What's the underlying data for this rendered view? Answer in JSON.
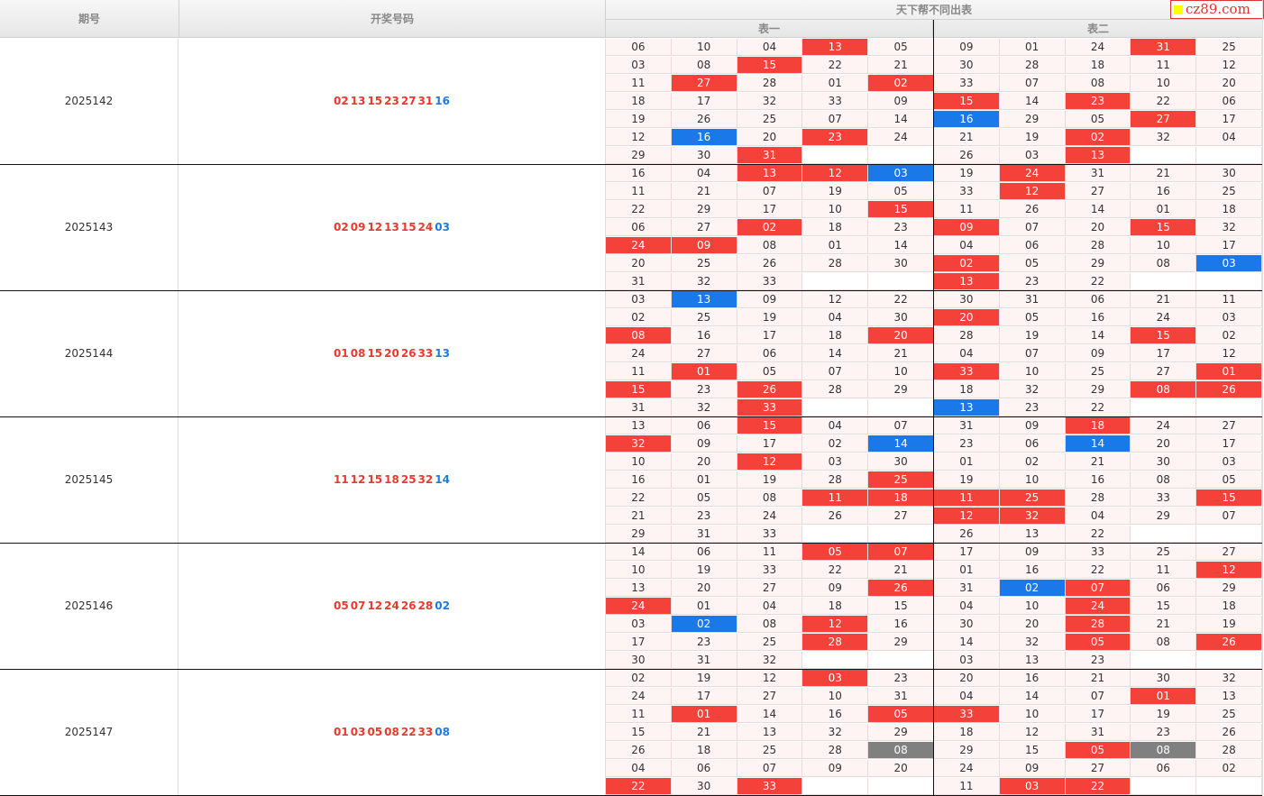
{
  "header": {
    "issue_label": "期号",
    "draw_label": "开奖号码",
    "main_title": "天下帮不同出表",
    "table1_label": "表一",
    "table2_label": "表二",
    "logo_text": "cz89.com"
  },
  "colors": {
    "red": "#f4413a",
    "blue": "#1b78e8",
    "gray": "#808080",
    "cell_bg": "#fff4f4"
  },
  "groups": [
    {
      "issue": "2025142",
      "red_numbers": [
        "02",
        "13",
        "15",
        "23",
        "27",
        "31"
      ],
      "blue_number": "16",
      "table1": [
        [
          "06",
          "10",
          "04",
          "13r",
          "05"
        ],
        [
          "03",
          "08",
          "15r",
          "22",
          "21"
        ],
        [
          "11",
          "27r",
          "28",
          "01",
          "02r"
        ],
        [
          "18",
          "17",
          "32",
          "33",
          "09"
        ],
        [
          "19",
          "26",
          "25",
          "07",
          "14"
        ],
        [
          "12",
          "16b",
          "20",
          "23r",
          "24"
        ],
        [
          "29",
          "30",
          "31r",
          "",
          ""
        ]
      ],
      "table2": [
        [
          "09",
          "01",
          "24",
          "31r",
          "25"
        ],
        [
          "30",
          "28",
          "18",
          "11",
          "12"
        ],
        [
          "33",
          "07",
          "08",
          "10",
          "20"
        ],
        [
          "15r",
          "14",
          "23r",
          "22",
          "06"
        ],
        [
          "16b",
          "29",
          "05",
          "27r",
          "17"
        ],
        [
          "21",
          "19",
          "02r",
          "32",
          "04"
        ],
        [
          "26",
          "03",
          "13r",
          "",
          ""
        ]
      ]
    },
    {
      "issue": "2025143",
      "red_numbers": [
        "02",
        "09",
        "12",
        "13",
        "15",
        "24"
      ],
      "blue_number": "03",
      "table1": [
        [
          "16",
          "04",
          "13r",
          "12r",
          "03b"
        ],
        [
          "11",
          "21",
          "07",
          "19",
          "05"
        ],
        [
          "22",
          "29",
          "17",
          "10",
          "15r"
        ],
        [
          "06",
          "27",
          "02r",
          "18",
          "23"
        ],
        [
          "24r",
          "09r",
          "08",
          "01",
          "14"
        ],
        [
          "20",
          "25",
          "26",
          "28",
          "30"
        ],
        [
          "31",
          "32",
          "33",
          "",
          ""
        ]
      ],
      "table2": [
        [
          "19",
          "24r",
          "31",
          "21",
          "30"
        ],
        [
          "33",
          "12r",
          "27",
          "16",
          "25"
        ],
        [
          "11",
          "26",
          "14",
          "01",
          "18"
        ],
        [
          "09r",
          "07",
          "20",
          "15r",
          "32"
        ],
        [
          "04",
          "06",
          "28",
          "10",
          "17"
        ],
        [
          "02r",
          "05",
          "29",
          "08",
          "03b"
        ],
        [
          "13r",
          "23",
          "22",
          "",
          ""
        ]
      ]
    },
    {
      "issue": "2025144",
      "red_numbers": [
        "01",
        "08",
        "15",
        "20",
        "26",
        "33"
      ],
      "blue_number": "13",
      "table1": [
        [
          "03",
          "13b",
          "09",
          "12",
          "22"
        ],
        [
          "02",
          "25",
          "19",
          "04",
          "30"
        ],
        [
          "08r",
          "16",
          "17",
          "18",
          "20r"
        ],
        [
          "24",
          "27",
          "06",
          "14",
          "21"
        ],
        [
          "11",
          "01r",
          "05",
          "07",
          "10"
        ],
        [
          "15r",
          "23",
          "26r",
          "28",
          "29"
        ],
        [
          "31",
          "32",
          "33r",
          "",
          ""
        ]
      ],
      "table2": [
        [
          "30",
          "31",
          "06",
          "21",
          "11"
        ],
        [
          "20r",
          "05",
          "16",
          "24",
          "03"
        ],
        [
          "28",
          "19",
          "14",
          "15r",
          "02"
        ],
        [
          "04",
          "07",
          "09",
          "17",
          "12"
        ],
        [
          "33r",
          "10",
          "25",
          "27",
          "01r"
        ],
        [
          "18",
          "32",
          "29",
          "08r",
          "26r"
        ],
        [
          "13b",
          "23",
          "22",
          "",
          ""
        ]
      ]
    },
    {
      "issue": "2025145",
      "red_numbers": [
        "11",
        "12",
        "15",
        "18",
        "25",
        "32"
      ],
      "blue_number": "14",
      "table1": [
        [
          "13",
          "06",
          "15r",
          "04",
          "07"
        ],
        [
          "32r",
          "09",
          "17",
          "02",
          "14b"
        ],
        [
          "10",
          "20",
          "12r",
          "03",
          "30"
        ],
        [
          "16",
          "01",
          "19",
          "28",
          "25r"
        ],
        [
          "22",
          "05",
          "08",
          "11r",
          "18r"
        ],
        [
          "21",
          "23",
          "24",
          "26",
          "27"
        ],
        [
          "29",
          "31",
          "33",
          "",
          ""
        ]
      ],
      "table2": [
        [
          "31",
          "09",
          "18r",
          "24",
          "27"
        ],
        [
          "23",
          "06",
          "14b",
          "20",
          "17"
        ],
        [
          "01",
          "02",
          "21",
          "30",
          "03"
        ],
        [
          "19",
          "10",
          "16",
          "08",
          "05"
        ],
        [
          "11r",
          "25r",
          "28",
          "33",
          "15r"
        ],
        [
          "12r",
          "32r",
          "04",
          "29",
          "07"
        ],
        [
          "26",
          "13",
          "22",
          "",
          ""
        ]
      ]
    },
    {
      "issue": "2025146",
      "red_numbers": [
        "05",
        "07",
        "12",
        "24",
        "26",
        "28"
      ],
      "blue_number": "02",
      "table1": [
        [
          "14",
          "06",
          "11",
          "05r",
          "07r"
        ],
        [
          "10",
          "19",
          "33",
          "22",
          "21"
        ],
        [
          "13",
          "20",
          "27",
          "09",
          "26r"
        ],
        [
          "24r",
          "01",
          "04",
          "18",
          "15"
        ],
        [
          "03",
          "02b",
          "08",
          "12r",
          "16"
        ],
        [
          "17",
          "23",
          "25",
          "28r",
          "29"
        ],
        [
          "30",
          "31",
          "32",
          "",
          ""
        ]
      ],
      "table2": [
        [
          "17",
          "09",
          "33",
          "25",
          "27"
        ],
        [
          "01",
          "16",
          "22",
          "11",
          "12r"
        ],
        [
          "31",
          "02b",
          "07r",
          "06",
          "29"
        ],
        [
          "04",
          "10",
          "24r",
          "15",
          "18"
        ],
        [
          "30",
          "20",
          "28r",
          "21",
          "19"
        ],
        [
          "14",
          "32",
          "05r",
          "08",
          "26r"
        ],
        [
          "03",
          "13",
          "23",
          "",
          ""
        ]
      ]
    },
    {
      "issue": "2025147",
      "red_numbers": [
        "01",
        "03",
        "05",
        "08",
        "22",
        "33"
      ],
      "blue_number": "08",
      "table1": [
        [
          "02",
          "19",
          "12",
          "03r",
          "23"
        ],
        [
          "24",
          "17",
          "27",
          "10",
          "31"
        ],
        [
          "11",
          "01r",
          "14",
          "16",
          "05r"
        ],
        [
          "15",
          "21",
          "13",
          "32",
          "29"
        ],
        [
          "26",
          "18",
          "25",
          "28",
          "08g"
        ],
        [
          "04",
          "06",
          "07",
          "09",
          "20"
        ],
        [
          "22r",
          "30",
          "33r",
          "",
          ""
        ]
      ],
      "table2": [
        [
          "20",
          "16",
          "21",
          "30",
          "32"
        ],
        [
          "04",
          "14",
          "07",
          "01r",
          "13"
        ],
        [
          "33r",
          "10",
          "17",
          "19",
          "25"
        ],
        [
          "18",
          "12",
          "31",
          "23",
          "26"
        ],
        [
          "29",
          "15",
          "05r",
          "08g",
          "28"
        ],
        [
          "24",
          "09",
          "27",
          "06",
          "02"
        ],
        [
          "11",
          "03r",
          "22r",
          "",
          ""
        ]
      ]
    }
  ]
}
